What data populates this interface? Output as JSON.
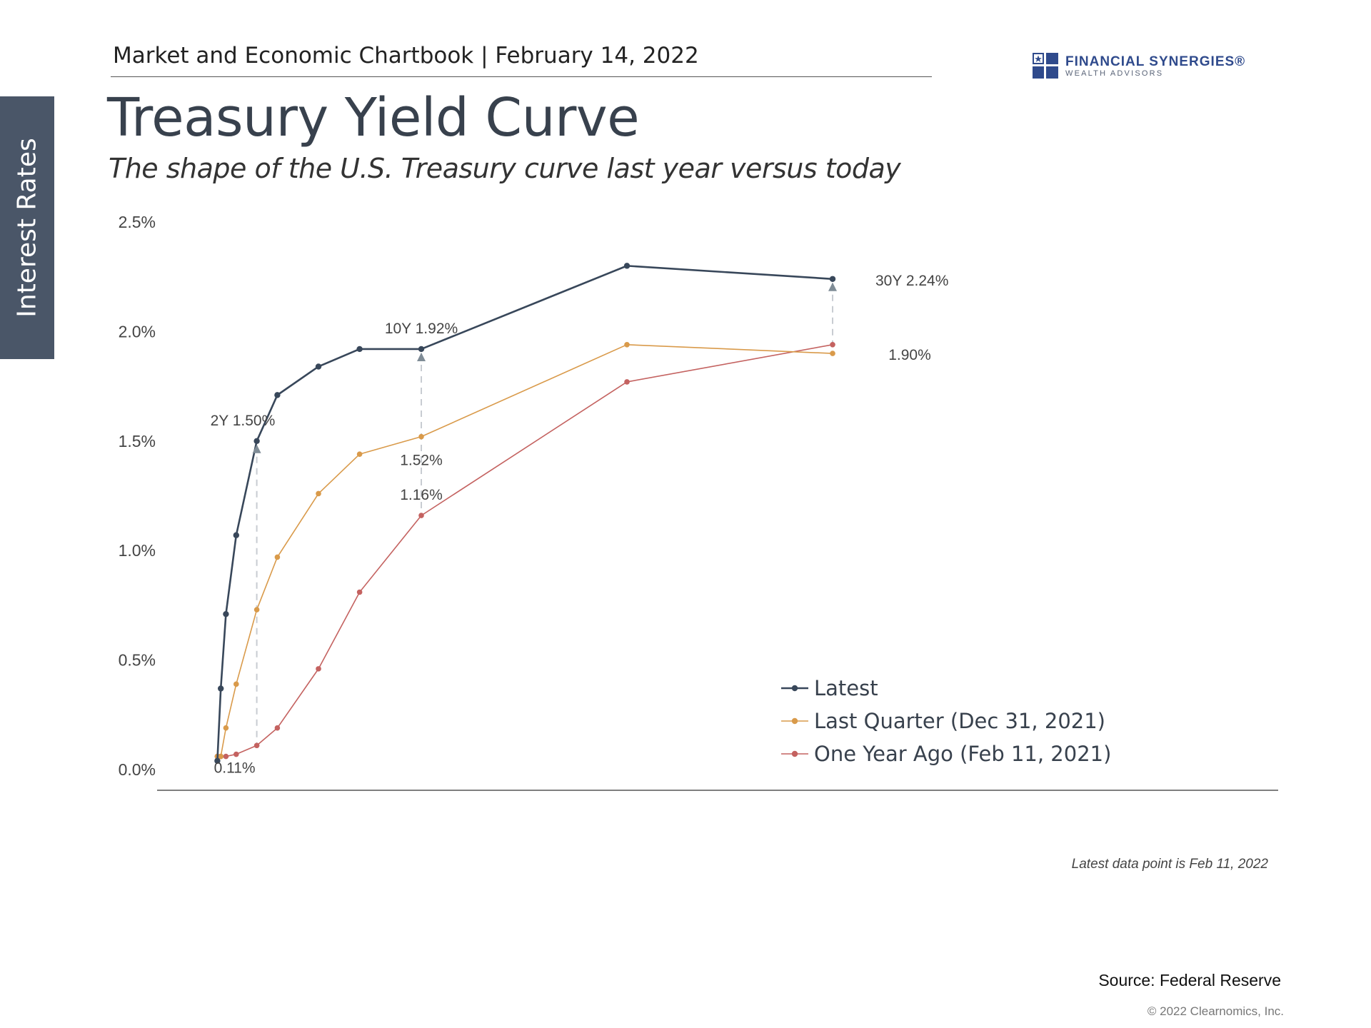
{
  "side_tab": {
    "label": "Interest Rates"
  },
  "header": {
    "text": "Market and Economic Chartbook | February 14, 2022"
  },
  "logo": {
    "name": "FINANCIAL SYNERGIES®",
    "tagline": "WEALTH ADVISORS",
    "color": "#2f4a8c"
  },
  "title": "Treasury Yield Curve",
  "subtitle": "The shape of the U.S. Treasury curve last year versus today",
  "chart_data": {
    "type": "line",
    "title": "",
    "xlabel": "",
    "ylabel": "",
    "x_unit": "years to maturity",
    "x": [
      0.0833,
      0.25,
      0.5,
      1,
      2,
      3,
      5,
      7,
      10,
      20,
      30
    ],
    "ylim": [
      0,
      2.5
    ],
    "y_ticks": [
      "0.0%",
      "0.5%",
      "1.0%",
      "1.5%",
      "2.0%",
      "2.5%"
    ],
    "grid": false,
    "legend_position": "lower-right",
    "series": [
      {
        "name": "Latest",
        "color": "#38475a",
        "values": [
          0.04,
          0.37,
          0.71,
          1.07,
          1.5,
          1.71,
          1.84,
          1.92,
          1.92,
          2.3,
          2.24
        ]
      },
      {
        "name": "Last Quarter (Dec 31, 2021)",
        "color": "#d99a4a",
        "values": [
          0.06,
          0.06,
          0.19,
          0.39,
          0.73,
          0.97,
          1.26,
          1.44,
          1.52,
          1.94,
          1.9
        ]
      },
      {
        "name": "One Year Ago (Feb 11, 2021)",
        "color": "#c46260",
        "values": [
          0.06,
          0.06,
          0.06,
          0.07,
          0.11,
          0.19,
          0.46,
          0.81,
          1.16,
          1.77,
          1.94
        ]
      }
    ],
    "annotations": [
      {
        "text": "2Y 1.50%",
        "x": 2,
        "y": 1.5
      },
      {
        "text": "0.11%",
        "x": 2,
        "y": 0.11
      },
      {
        "text": "10Y 1.92%",
        "x": 10,
        "y": 1.92
      },
      {
        "text": "1.52%",
        "x": 10,
        "y": 1.52
      },
      {
        "text": "1.16%",
        "x": 10,
        "y": 1.16
      },
      {
        "text": "30Y 2.24%",
        "x": 30,
        "y": 2.24
      },
      {
        "text": "1.90%",
        "x": 30,
        "y": 1.9
      }
    ]
  },
  "footnote": "Latest data point is Feb 11, 2022",
  "source": "Source: Federal Reserve",
  "copyright": "© 2022 Clearnomics, Inc."
}
